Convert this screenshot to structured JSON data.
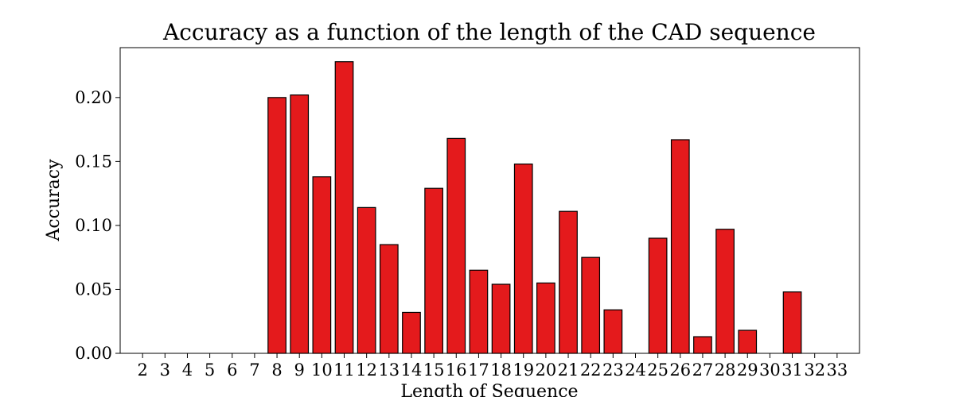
{
  "chart_data": {
    "type": "bar",
    "title": "Accuracy as a function of the length of the CAD sequence",
    "xlabel": "Length of Sequence",
    "ylabel": "Accuracy",
    "categories": [
      "2",
      "3",
      "4",
      "5",
      "6",
      "7",
      "8",
      "9",
      "10",
      "11",
      "12",
      "13",
      "14",
      "15",
      "16",
      "17",
      "18",
      "19",
      "20",
      "21",
      "22",
      "23",
      "24",
      "25",
      "26",
      "27",
      "28",
      "29",
      "30",
      "31",
      "32",
      "33"
    ],
    "values": [
      0,
      0,
      0,
      0,
      0,
      0,
      0.2,
      0.202,
      0.138,
      0.228,
      0.114,
      0.085,
      0.032,
      0.129,
      0.168,
      0.065,
      0.054,
      0.148,
      0.055,
      0.111,
      0.075,
      0.034,
      0,
      0.09,
      0.167,
      0.013,
      0.097,
      0.018,
      0,
      0.048,
      0,
      0
    ],
    "ylim": [
      0,
      0.239
    ],
    "yticks": [
      0.0,
      0.05,
      0.1,
      0.15,
      0.2
    ],
    "ytick_labels": [
      "0.00",
      "0.05",
      "0.10",
      "0.15",
      "0.20"
    ],
    "bar_color": "#e41a1c",
    "edge_color": "#000000",
    "grid": false,
    "legend": "none"
  }
}
